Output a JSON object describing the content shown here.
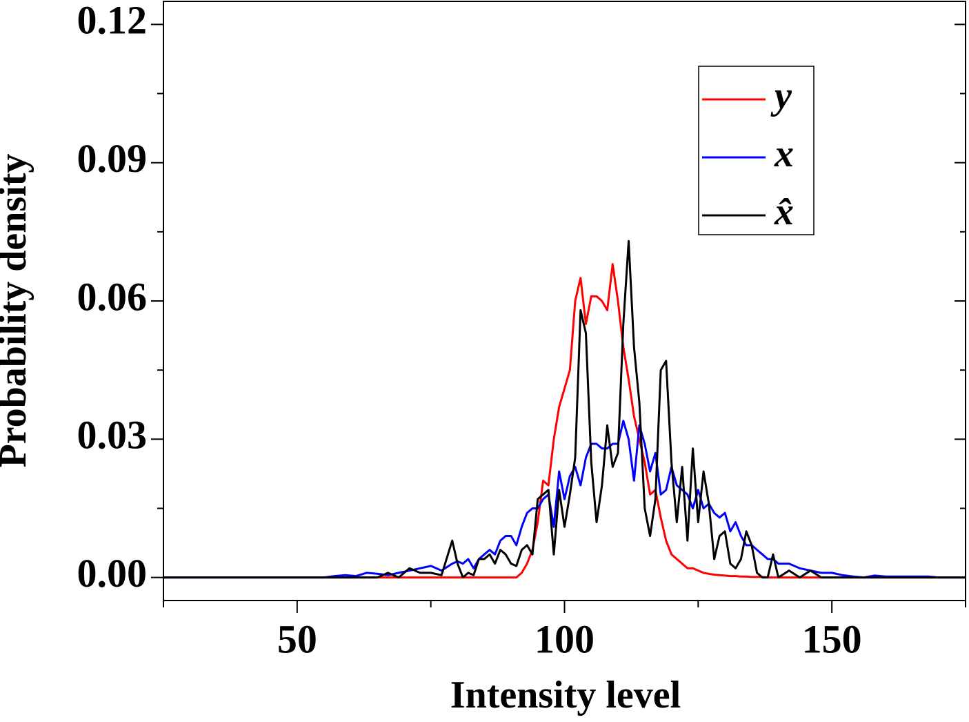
{
  "chart_data": {
    "type": "line",
    "xlabel": "Intensity level",
    "ylabel": "Probability density",
    "x": [
      25,
      55,
      57,
      59,
      61,
      63,
      65,
      67,
      69,
      71,
      73,
      75,
      77,
      79,
      80,
      81,
      82,
      83,
      84,
      85,
      86,
      87,
      88,
      89,
      90,
      91,
      92,
      93,
      94,
      95,
      96,
      97,
      98,
      99,
      100,
      101,
      102,
      103,
      104,
      105,
      106,
      107,
      108,
      109,
      110,
      111,
      112,
      113,
      114,
      115,
      116,
      117,
      118,
      119,
      120,
      121,
      122,
      123,
      124,
      125,
      126,
      127,
      128,
      129,
      130,
      131,
      132,
      133,
      134,
      135,
      136,
      137,
      138,
      139,
      140,
      142,
      144,
      146,
      148,
      150,
      152,
      154,
      156,
      158,
      160,
      162,
      164,
      166,
      168,
      170,
      175
    ],
    "series": [
      {
        "name": "y",
        "color": "#ff0000",
        "values": [
          0,
          0,
          0,
          0,
          0,
          0,
          0,
          0,
          0,
          0,
          0,
          0,
          0,
          0,
          0,
          0,
          0,
          0,
          0,
          0,
          0,
          0,
          0,
          0,
          0,
          0,
          0.001,
          0.003,
          0.006,
          0.012,
          0.021,
          0.02,
          0.03,
          0.037,
          0.041,
          0.045,
          0.06,
          0.065,
          0.055,
          0.061,
          0.061,
          0.06,
          0.058,
          0.068,
          0.06,
          0.05,
          0.043,
          0.035,
          0.03,
          0.025,
          0.018,
          0.019,
          0.013,
          0.008,
          0.005,
          0.004,
          0.003,
          0.002,
          0.002,
          0.0015,
          0.001,
          0.0008,
          0.0006,
          0.0005,
          0.0004,
          0.0003,
          0.0003,
          0.0002,
          0.0002,
          0.0001,
          0.0001,
          0.0001,
          0,
          0,
          0,
          0,
          0,
          0,
          0,
          0,
          0,
          0,
          0,
          0,
          0,
          0,
          0,
          0,
          0,
          0,
          0
        ]
      },
      {
        "name": "x",
        "color": "#0000ff",
        "values": [
          0,
          0,
          0.0003,
          0.0005,
          0.0003,
          0.001,
          0.0008,
          0.0005,
          0.001,
          0.0015,
          0.002,
          0.0025,
          0.0015,
          0.003,
          0.0035,
          0.003,
          0.004,
          0.002,
          0.004,
          0.005,
          0.006,
          0.005,
          0.008,
          0.009,
          0.009,
          0.007,
          0.011,
          0.014,
          0.015,
          0.015,
          0.017,
          0.018,
          0.011,
          0.023,
          0.017,
          0.022,
          0.024,
          0.02,
          0.026,
          0.029,
          0.029,
          0.028,
          0.028,
          0.029,
          0.029,
          0.034,
          0.03,
          0.021,
          0.033,
          0.029,
          0.023,
          0.027,
          0.018,
          0.019,
          0.024,
          0.02,
          0.019,
          0.018,
          0.015,
          0.019,
          0.015,
          0.016,
          0.014,
          0.013,
          0.014,
          0.01,
          0.012,
          0.009,
          0.007,
          0.007,
          0.006,
          0.005,
          0.004,
          0.004,
          0.003,
          0.003,
          0.002,
          0.0015,
          0.001,
          0.001,
          0.0005,
          0.0002,
          0,
          0.0004,
          0.0002,
          0.0002,
          0.0002,
          0.0002,
          0.0002,
          0,
          0
        ]
      },
      {
        "name": "x̂",
        "color": "#000000",
        "values": [
          0,
          0,
          0,
          0,
          0,
          0,
          0,
          0.001,
          0,
          0.002,
          0.001,
          0.001,
          0.0005,
          0.008,
          0.003,
          0,
          0.001,
          0.0005,
          0.004,
          0.004,
          0.005,
          0.003,
          0.006,
          0.005,
          0.003,
          0.0025,
          0.006,
          0.007,
          0.005,
          0.017,
          0.018,
          0.019,
          0.005,
          0.019,
          0.011,
          0.018,
          0.026,
          0.058,
          0.053,
          0.025,
          0.012,
          0.02,
          0.033,
          0.024,
          0.027,
          0.055,
          0.073,
          0.05,
          0.038,
          0.015,
          0.009,
          0.017,
          0.045,
          0.047,
          0.025,
          0.012,
          0.024,
          0.008,
          0.028,
          0.012,
          0.023,
          0.016,
          0.004,
          0.009,
          0.01,
          0.003,
          0.002,
          0.004,
          0.01,
          0.007,
          0.001,
          0,
          0,
          0.005,
          0,
          0.0015,
          0,
          0.0015,
          0,
          0,
          0,
          0,
          0,
          0,
          0,
          0,
          0,
          0,
          0,
          0,
          0
        ]
      }
    ],
    "xlim": [
      25,
      175
    ],
    "xticks": [
      50,
      100,
      150
    ],
    "ylim": [
      -0.005,
      0.125
    ],
    "yticks": [
      {
        "value": 0,
        "label": "0.00"
      },
      {
        "value": 0.03,
        "label": "0.03"
      },
      {
        "value": 0.06,
        "label": "0.06"
      },
      {
        "value": 0.09,
        "label": "0.09"
      },
      {
        "value": 0.12,
        "label": "0.12"
      }
    ],
    "legend": "upper right"
  }
}
